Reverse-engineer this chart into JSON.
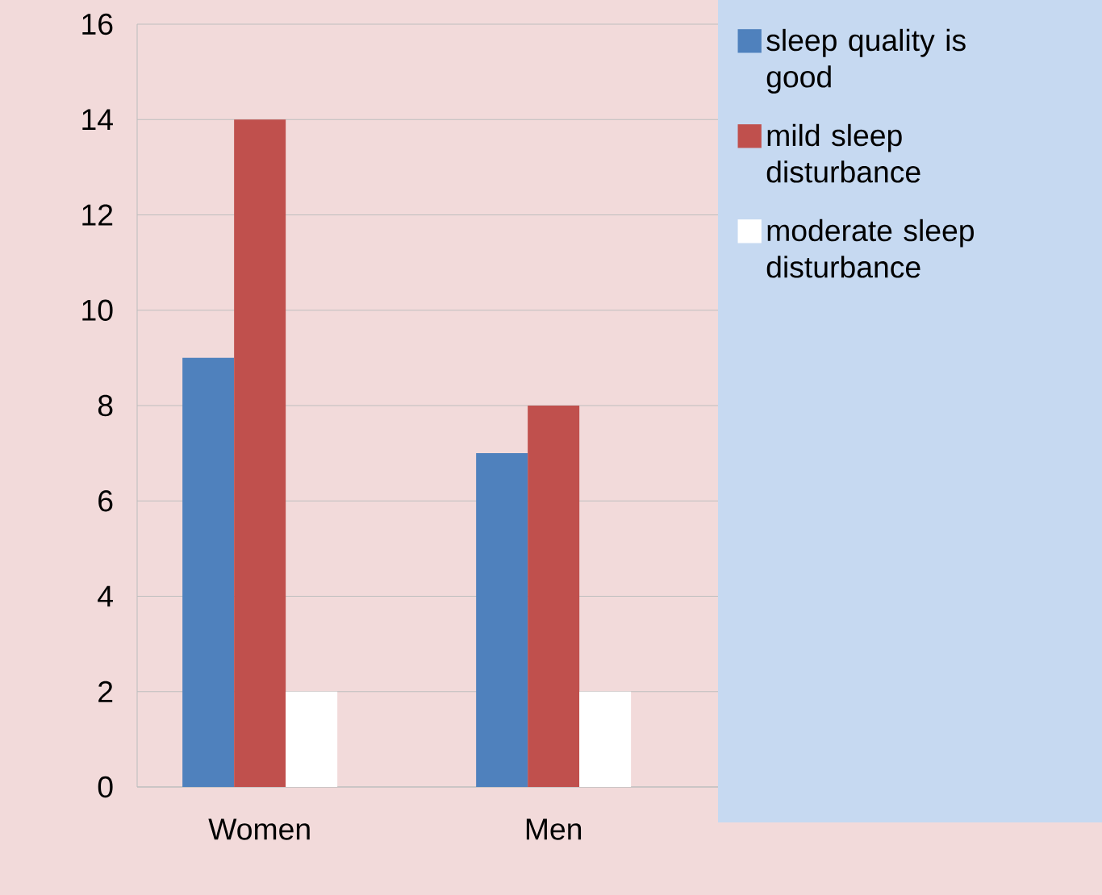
{
  "chart_data": {
    "type": "bar",
    "categories": [
      "Women",
      "Men"
    ],
    "series": [
      {
        "name": "sleep quality is good",
        "color": "#4f81bd",
        "values": [
          9,
          7
        ]
      },
      {
        "name": "mild sleep disturbance",
        "color": "#c0504d",
        "values": [
          14,
          8
        ]
      },
      {
        "name": "moderate sleep disturbance",
        "color": "#ffffff",
        "values": [
          2,
          2
        ]
      }
    ],
    "ylim": [
      0,
      16
    ],
    "yticks": [
      0,
      2,
      4,
      6,
      8,
      10,
      12,
      14,
      16
    ],
    "grid": "y",
    "legend": "right"
  }
}
